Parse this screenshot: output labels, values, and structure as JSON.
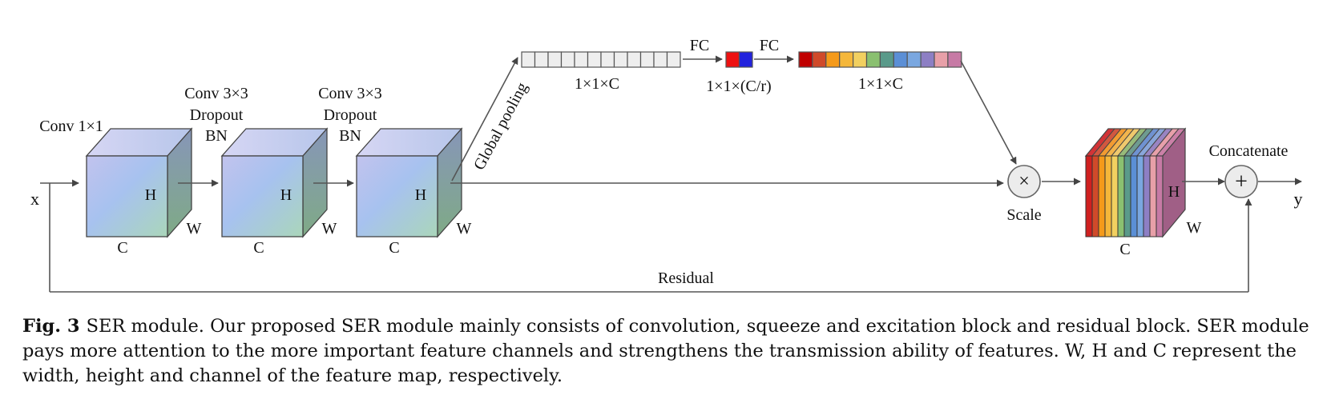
{
  "diagram": {
    "input_label": "x",
    "output_label": "y",
    "blocks": [
      {
        "top_labels": [
          "Conv 1×1"
        ],
        "height_label": "H",
        "width_label": "W",
        "channel_label": "C"
      },
      {
        "top_labels": [
          "Conv 3×3",
          "Dropout",
          "BN"
        ],
        "height_label": "H",
        "width_label": "W",
        "channel_label": "C"
      },
      {
        "top_labels": [
          "Conv 3×3",
          "Dropout",
          "BN"
        ],
        "height_label": "H",
        "width_label": "W",
        "channel_label": "C"
      }
    ],
    "global_pooling_label": "Global pooling",
    "squeeze_vector_label": "1×1×C",
    "fc1_label": "FC",
    "fc2_label": "FC",
    "reduced_vector_label": "1×1×(C/r)",
    "excite_vector_label": "1×1×C",
    "scale_symbol": "×",
    "scale_label": "Scale",
    "output_block": {
      "height_label": "H",
      "width_label": "W",
      "channel_label": "C"
    },
    "concat_symbol": "+",
    "concat_label": "Concatenate",
    "residual_label": "Residual"
  },
  "colors": {
    "squeeze_cells": [
      "#eeeeee",
      "#eeeeee",
      "#eeeeee",
      "#eeeeee",
      "#eeeeee",
      "#eeeeee",
      "#eeeeee",
      "#eeeeee",
      "#eeeeee",
      "#eeeeee",
      "#eeeeee",
      "#eeeeee"
    ],
    "reduced_cells": [
      "#ee1111",
      "#2222dd"
    ],
    "excite_cells": [
      "#c00000",
      "#d04a2a",
      "#f59a1a",
      "#f5b73a",
      "#f2d060",
      "#8ac070",
      "#5a9a8a",
      "#5b8fd6",
      "#7aa7e0",
      "#8d7fc4",
      "#e8a0a8",
      "#c77aa5"
    ],
    "output_slices": [
      "#d02020",
      "#d04a2a",
      "#f59a1a",
      "#f5b73a",
      "#f2d060",
      "#8ac070",
      "#5a9a8a",
      "#5b8fd6",
      "#7aa7e0",
      "#8d7fc4",
      "#e8a0a8",
      "#c77aa5"
    ]
  },
  "caption": {
    "figure_label": "Fig. 3",
    "text": "SER module. Our proposed SER module mainly consists of convolution, squeeze and excitation block and residual block. SER module pays more attention to the more important feature channels and strengthens the transmission ability of features. W, H and C represent the width, height and channel of the feature map, respectively."
  }
}
